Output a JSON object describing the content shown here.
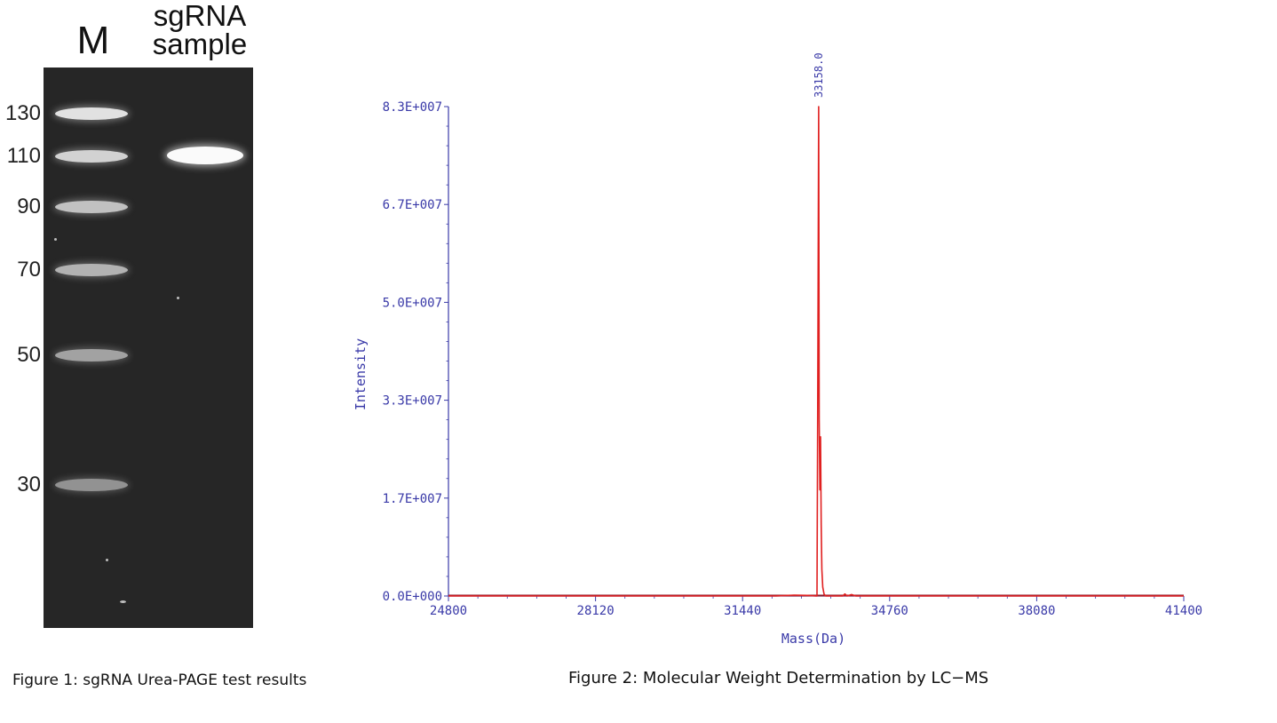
{
  "figure1": {
    "lane_labels": {
      "marker": "M",
      "sample": [
        "sgRNA",
        "sample"
      ]
    },
    "ladder": [
      {
        "label": "130",
        "size": 130
      },
      {
        "label": "110",
        "size": 110
      },
      {
        "label": "90",
        "size": 90
      },
      {
        "label": "70",
        "size": 70
      },
      {
        "label": "50",
        "size": 50
      },
      {
        "label": "30",
        "size": 30
      }
    ],
    "sample_band_size": 110,
    "caption": "Figure 1: sgRNA Urea-PAGE test results"
  },
  "figure2": {
    "caption": "Figure 2: Molecular Weight Determination by LC−MS"
  },
  "chart_data": {
    "type": "line",
    "xlabel": "Mass(Da)",
    "ylabel": "Intensity",
    "xlim": [
      24800,
      41400
    ],
    "ylim": [
      0,
      83000000
    ],
    "x_ticks": [
      "24800",
      "28120",
      "31440",
      "34760",
      "38080",
      "41400"
    ],
    "y_ticks": [
      "0.0E+000",
      "1.7E+007",
      "3.3E+007",
      "5.0E+007",
      "6.7E+007",
      "8.3E+007"
    ],
    "annotations": [
      {
        "text": "33158.0",
        "x": 33158,
        "y": 83000000
      }
    ],
    "grid": false,
    "colors": {
      "axis": "#3a3aa8",
      "series": "#e02020",
      "baseline": "#8b1a2a"
    },
    "series": [
      {
        "points": [
          [
            24800,
            0
          ],
          [
            32200,
            0
          ],
          [
            32600,
            150000
          ],
          [
            32900,
            100000
          ],
          [
            33100,
            0
          ],
          [
            33120,
            0
          ],
          [
            33135,
            30000000
          ],
          [
            33145,
            52000000
          ],
          [
            33158,
            83000000
          ],
          [
            33170,
            30000000
          ],
          [
            33185,
            18000000
          ],
          [
            33200,
            27000000
          ],
          [
            33215,
            12000000
          ],
          [
            33230,
            4500000
          ],
          [
            33250,
            1500000
          ],
          [
            33280,
            300000
          ],
          [
            33320,
            0
          ],
          [
            33700,
            0
          ],
          [
            33750,
            350000
          ],
          [
            33800,
            0
          ],
          [
            33900,
            250000
          ],
          [
            34000,
            0
          ],
          [
            41400,
            0
          ]
        ]
      }
    ]
  }
}
